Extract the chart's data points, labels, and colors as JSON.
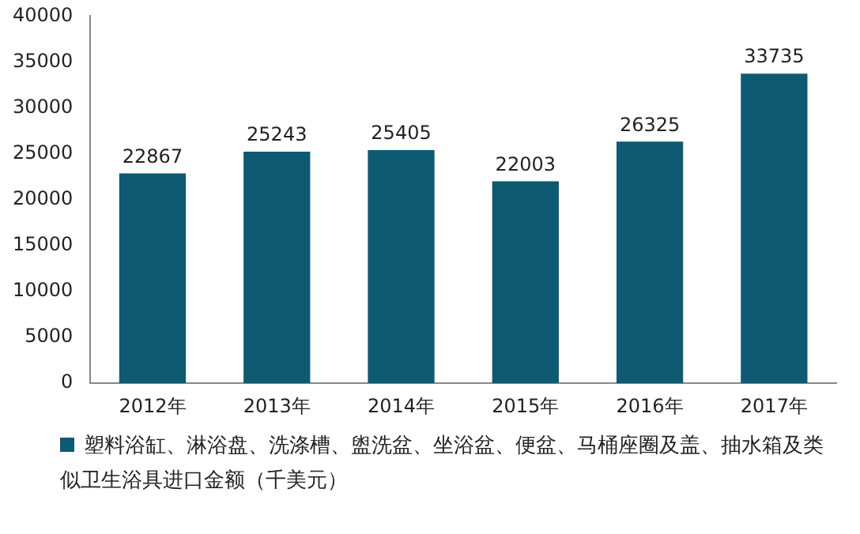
{
  "chart_data": {
    "type": "bar",
    "categories": [
      "2012年",
      "2013年",
      "2014年",
      "2015年",
      "2016年",
      "2017年"
    ],
    "series": [
      {
        "name": "塑料浴缸、淋浴盘、洗涤槽、盥洗盆、坐浴盆、便盆、马桶座圈及盖、抽水箱及类似卫生浴具进口金额（千美元）",
        "color": "#0e5a72",
        "values": [
          22867,
          25243,
          25405,
          22003,
          26325,
          33735
        ]
      }
    ],
    "ylim": [
      0,
      40000
    ],
    "yticks": [
      0,
      5000,
      10000,
      15000,
      20000,
      25000,
      30000,
      35000,
      40000
    ],
    "grid": false,
    "legend": "bottom",
    "data_labels": true
  }
}
